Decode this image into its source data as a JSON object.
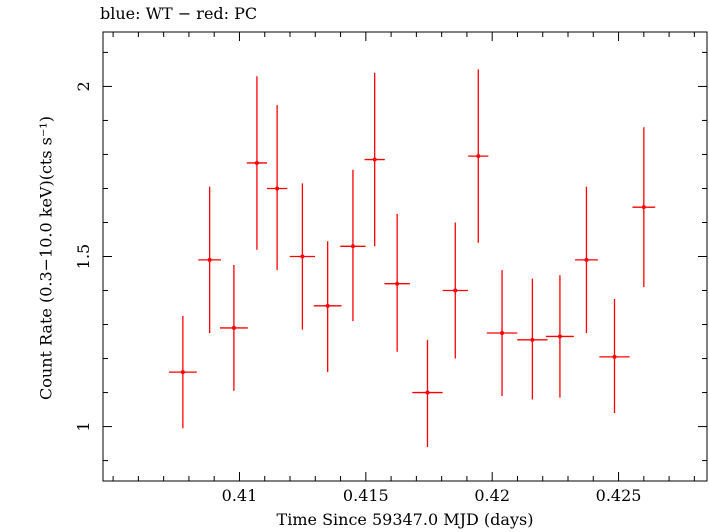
{
  "chart_data": {
    "type": "scatter",
    "title": "blue: WT − red: PC",
    "xlabel": "Time Since 59347.0 MJD (days)",
    "ylabel": "Count Rate (0.3−10.0 keV)(cts s⁻¹)",
    "xlim": [
      0.4046,
      0.4285
    ],
    "ylim": [
      0.84,
      2.16
    ],
    "x_ticks": [
      0.41,
      0.415,
      0.42,
      0.425
    ],
    "x_tick_labels": [
      "0.41",
      "0.415",
      "0.42",
      "0.425"
    ],
    "y_ticks": [
      1,
      1.5,
      2
    ],
    "y_tick_labels": [
      "1",
      "1.5",
      "2"
    ],
    "grid": false,
    "series": [
      {
        "color": "#ff0000",
        "points": [
          {
            "x": 0.40776,
            "xerr": 0.00055,
            "y": 1.16,
            "ylo": 0.995,
            "yhi": 1.325
          },
          {
            "x": 0.40882,
            "xerr": 0.00045,
            "y": 1.49,
            "ylo": 1.275,
            "yhi": 1.705
          },
          {
            "x": 0.40978,
            "xerr": 0.00055,
            "y": 1.29,
            "ylo": 1.105,
            "yhi": 1.475
          },
          {
            "x": 0.41069,
            "xerr": 0.0004,
            "y": 1.775,
            "ylo": 1.52,
            "yhi": 2.03
          },
          {
            "x": 0.41149,
            "xerr": 0.0004,
            "y": 1.7,
            "ylo": 1.46,
            "yhi": 1.945
          },
          {
            "x": 0.41249,
            "xerr": 0.0005,
            "y": 1.5,
            "ylo": 1.285,
            "yhi": 1.715
          },
          {
            "x": 0.41349,
            "xerr": 0.00055,
            "y": 1.355,
            "ylo": 1.16,
            "yhi": 1.545
          },
          {
            "x": 0.41449,
            "xerr": 0.0005,
            "y": 1.53,
            "ylo": 1.31,
            "yhi": 1.755
          },
          {
            "x": 0.41535,
            "xerr": 0.0004,
            "y": 1.785,
            "ylo": 1.53,
            "yhi": 2.04
          },
          {
            "x": 0.41624,
            "xerr": 0.0005,
            "y": 1.42,
            "ylo": 1.22,
            "yhi": 1.625
          },
          {
            "x": 0.41744,
            "xerr": 0.0006,
            "y": 1.1,
            "ylo": 0.94,
            "yhi": 1.255
          },
          {
            "x": 0.41854,
            "xerr": 0.0005,
            "y": 1.4,
            "ylo": 1.2,
            "yhi": 1.6
          },
          {
            "x": 0.41945,
            "xerr": 0.0004,
            "y": 1.795,
            "ylo": 1.54,
            "yhi": 2.05
          },
          {
            "x": 0.42039,
            "xerr": 0.0006,
            "y": 1.275,
            "ylo": 1.09,
            "yhi": 1.46
          },
          {
            "x": 0.42159,
            "xerr": 0.0006,
            "y": 1.255,
            "ylo": 1.08,
            "yhi": 1.435
          },
          {
            "x": 0.42268,
            "xerr": 0.00055,
            "y": 1.265,
            "ylo": 1.085,
            "yhi": 1.445
          },
          {
            "x": 0.42373,
            "xerr": 0.00045,
            "y": 1.49,
            "ylo": 1.275,
            "yhi": 1.705
          },
          {
            "x": 0.42484,
            "xerr": 0.0006,
            "y": 1.205,
            "ylo": 1.04,
            "yhi": 1.375
          },
          {
            "x": 0.426,
            "xerr": 0.00045,
            "y": 1.645,
            "ylo": 1.41,
            "yhi": 1.88
          }
        ]
      }
    ]
  }
}
